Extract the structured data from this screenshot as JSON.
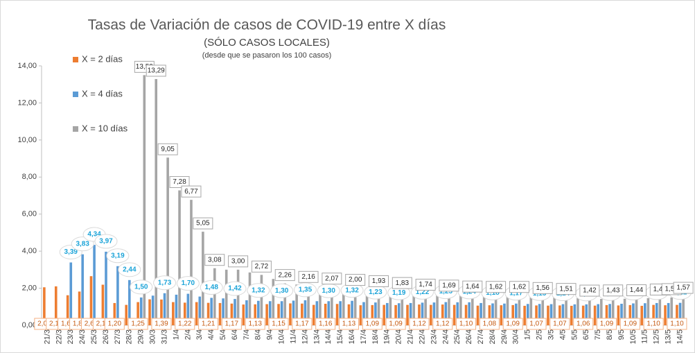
{
  "chart_data": {
    "type": "bar",
    "title": "Tasas de Variación de casos de COVID-19 entre X días",
    "subtitle": "(SÓLO CASOS LOCALES)",
    "note": "(desde que se pasaron los 100 casos)",
    "categories": [
      "21/3",
      "22/3",
      "23/3",
      "24/3",
      "25/3",
      "26/3",
      "27/3",
      "28/3",
      "29/3",
      "30/3",
      "31/3",
      "1/4",
      "2/4",
      "3/4",
      "4/4",
      "5/4",
      "6/4",
      "7/4",
      "8/4",
      "9/4",
      "10/4",
      "11/4",
      "12/4",
      "13/4",
      "14/4",
      "15/4",
      "16/4",
      "17/4",
      "18/4",
      "19/4",
      "20/4",
      "21/4",
      "22/4",
      "23/4",
      "24/4",
      "25/4",
      "26/4",
      "27/4",
      "28/4",
      "29/4",
      "30/4",
      "1/5",
      "2/5",
      "3/5",
      "4/5",
      "5/5",
      "6/5",
      "7/5",
      "8/5",
      "9/5",
      "10/5",
      "11/5",
      "12/5",
      "13/5",
      "14/5"
    ],
    "series": [
      {
        "name": "X = 2 días",
        "color": "#ed7d31",
        "values": [
          2.05,
          2.1,
          1.62,
          1.82,
          2.65,
          2.19,
          1.2,
          1.1,
          1.25,
          1.4,
          1.39,
          1.25,
          1.22,
          1.25,
          1.21,
          1.2,
          1.17,
          1.12,
          1.13,
          1.14,
          1.15,
          1.18,
          1.17,
          1.1,
          1.16,
          1.15,
          1.13,
          1.08,
          1.09,
          1.1,
          1.09,
          1.1,
          1.12,
          1.1,
          1.12,
          1.1,
          1.1,
          1.06,
          1.08,
          1.08,
          1.09,
          1.05,
          1.07,
          1.06,
          1.07,
          1.05,
          1.06,
          1.06,
          1.09,
          1.07,
          1.09,
          1.05,
          1.1,
          1.08,
          1.1
        ],
        "value_labels": [
          "2,05",
          "2,10",
          "1,62",
          "1,82",
          "2,65",
          "2,19",
          "1,20",
          null,
          "1,25",
          null,
          "1,39",
          null,
          "1,22",
          null,
          "1,21",
          null,
          "1,17",
          null,
          "1,13",
          null,
          "1,15",
          null,
          "1,17",
          null,
          "1,16",
          null,
          "1,13",
          null,
          "1,09",
          null,
          "1,09",
          null,
          "1,12",
          null,
          "1,12",
          null,
          "1,10",
          null,
          "1,08",
          null,
          "1,09",
          null,
          "1,07",
          null,
          "1,07",
          null,
          "1,06",
          null,
          "1,09",
          null,
          "1,09",
          null,
          "1,10",
          null,
          "1,10"
        ]
      },
      {
        "name": "X = 4 días",
        "color": "#5b9bd5",
        "values": [
          null,
          null,
          3.39,
          3.83,
          4.34,
          3.97,
          3.19,
          2.44,
          1.5,
          1.6,
          1.73,
          1.65,
          1.7,
          1.55,
          1.48,
          1.45,
          1.42,
          1.35,
          1.32,
          1.3,
          1.3,
          1.33,
          1.35,
          1.3,
          1.3,
          1.3,
          1.32,
          1.25,
          1.23,
          1.2,
          1.19,
          1.2,
          1.22,
          1.23,
          1.25,
          1.24,
          1.24,
          1.2,
          1.18,
          1.17,
          1.17,
          1.15,
          1.15,
          1.14,
          1.14,
          1.13,
          1.13,
          1.14,
          1.15,
          1.16,
          1.18,
          1.19,
          1.2,
          1.2,
          1.21
        ],
        "value_labels": [
          null,
          null,
          "3,39",
          "3,83",
          "4,34",
          "3,97",
          "3,19",
          "2,44",
          "1,50",
          null,
          "1,73",
          null,
          "1,70",
          null,
          "1,48",
          null,
          "1,42",
          null,
          "1,32",
          null,
          "1,30",
          null,
          "1,35",
          null,
          "1,30",
          null,
          "1,32",
          null,
          "1,23",
          null,
          "1,19",
          null,
          "1,22",
          null,
          "1,25",
          null,
          "1,24",
          null,
          "1,18",
          null,
          "1,17",
          null,
          "1,15",
          null,
          "1,14",
          null,
          "1,13",
          null,
          "1,15",
          null,
          "1,18",
          null,
          "1,20",
          null,
          "1,21"
        ]
      },
      {
        "name": "X = 10 días",
        "color": "#a5a5a5",
        "values": [
          null,
          null,
          null,
          null,
          null,
          null,
          null,
          null,
          13.5,
          13.29,
          9.05,
          7.28,
          6.77,
          5.05,
          3.08,
          3.0,
          3.0,
          2.85,
          2.72,
          2.5,
          2.26,
          2.2,
          2.16,
          2.1,
          2.07,
          2.05,
          2.0,
          1.95,
          1.93,
          1.88,
          1.83,
          1.8,
          1.74,
          1.7,
          1.69,
          1.66,
          1.64,
          1.63,
          1.62,
          1.62,
          1.62,
          1.6,
          1.56,
          1.53,
          1.51,
          1.46,
          1.42,
          1.42,
          1.43,
          1.43,
          1.44,
          1.46,
          1.48,
          1.5,
          1.57
        ],
        "value_labels": [
          null,
          null,
          null,
          null,
          null,
          null,
          null,
          null,
          "13,50",
          "13,29",
          "9,05",
          "7,28",
          "6,77",
          "5,05",
          "3,08",
          null,
          "3,00",
          null,
          "2,72",
          null,
          "2,26",
          null,
          "2,16",
          null,
          "2,07",
          null,
          "2,00",
          null,
          "1,93",
          null,
          "1,83",
          null,
          "1,74",
          null,
          "1,69",
          null,
          "1,64",
          null,
          "1,62",
          null,
          "1,62",
          null,
          "1,56",
          null,
          "1,51",
          null,
          "1,42",
          null,
          "1,43",
          null,
          "1,44",
          null,
          "1,48",
          "1,50",
          "1,57"
        ]
      }
    ],
    "ylim": [
      0,
      14
    ],
    "yticks": [
      {
        "value": 0,
        "label": "0,00"
      },
      {
        "value": 2,
        "label": "2,00"
      },
      {
        "value": 4,
        "label": "4,00"
      },
      {
        "value": 6,
        "label": "6,00"
      },
      {
        "value": 8,
        "label": "8,00"
      },
      {
        "value": 10,
        "label": "10,00"
      },
      {
        "value": 12,
        "label": "12,00"
      },
      {
        "value": 14,
        "label": "14,00"
      }
    ],
    "grid": false,
    "legend": "top-left"
  }
}
